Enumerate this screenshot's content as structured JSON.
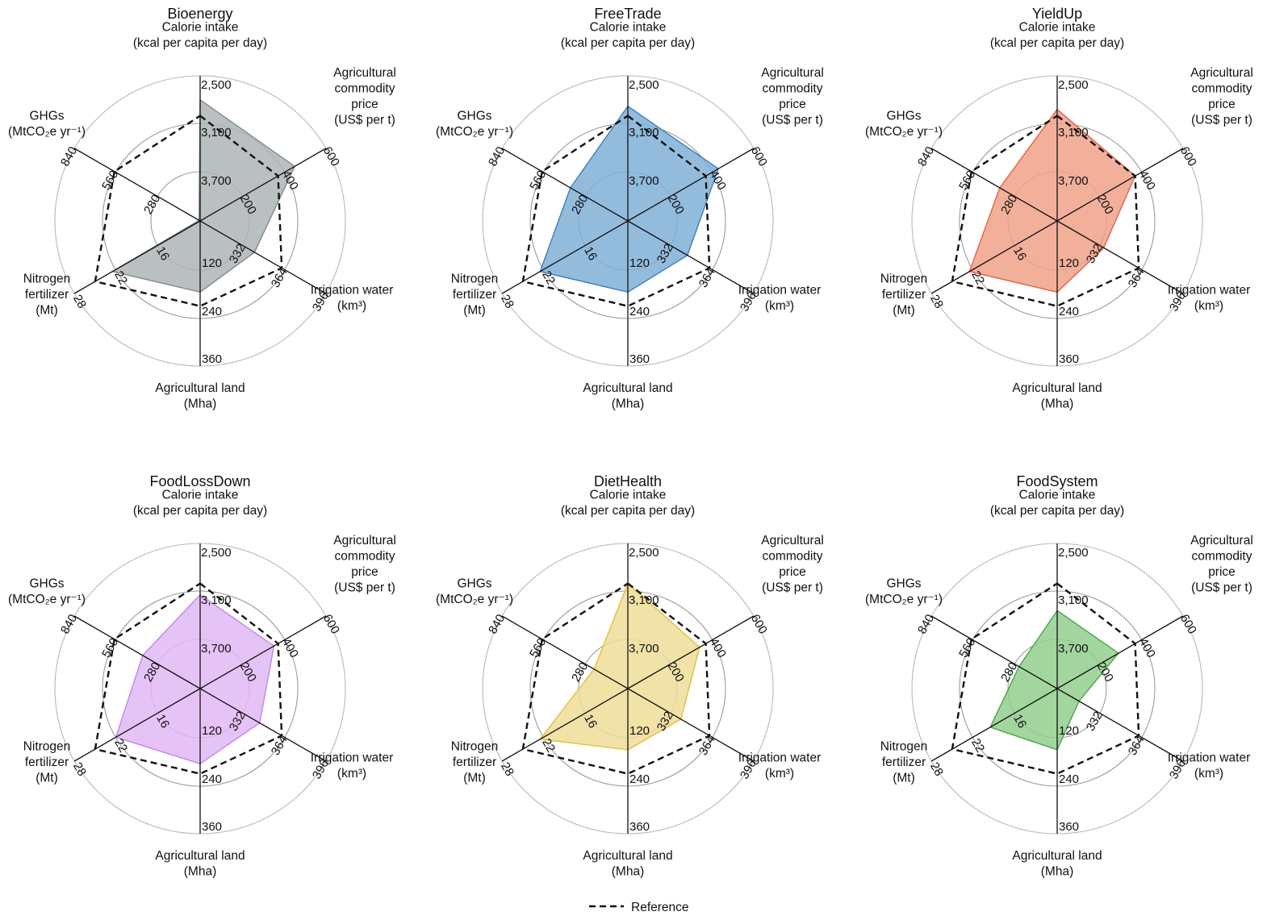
{
  "figure": {
    "legend": {
      "label": "Reference",
      "line_style": "dashed",
      "color": "#111111"
    }
  },
  "axes": [
    {
      "key": "calorie",
      "label_lines": [
        "Calorie intake",
        "(kcal per capita per day)"
      ],
      "ticks": [
        "2,500",
        "3,100",
        "3,700"
      ]
    },
    {
      "key": "price",
      "label_lines": [
        "Agricultural",
        "commodity",
        "price",
        "(US$ per t)"
      ],
      "ticks": [
        "600",
        "400",
        "200"
      ]
    },
    {
      "key": "water",
      "label_lines": [
        "Irrigation water",
        "(km³)"
      ],
      "ticks": [
        "396",
        "364",
        "332"
      ]
    },
    {
      "key": "land",
      "label_lines": [
        "Agricultural land",
        "(Mha)"
      ],
      "ticks": [
        "360",
        "240",
        "120"
      ]
    },
    {
      "key": "nitrogen",
      "label_lines": [
        "Nitrogen",
        "fertilizer",
        "(Mt)"
      ],
      "ticks": [
        "28",
        "22",
        "16"
      ]
    },
    {
      "key": "ghg",
      "label_lines": [
        "GHGs",
        "(MtCO₂e yr⁻¹)"
      ],
      "ticks": [
        "840",
        "560",
        "280"
      ]
    }
  ],
  "chart_data": [
    {
      "type": "radar",
      "title": "Bioenergy",
      "color": "#aeb4b6",
      "stroke": "#7f8a8e",
      "axes": [
        "Calorie intake",
        "Agricultural commodity price",
        "Irrigation water",
        "Agricultural land",
        "Nitrogen fertilizer",
        "GHGs"
      ],
      "scale_note": "outer ring = first tick, inner rings = next ticks (calorie axis reversed, water axis starts at 300)",
      "reference": [
        3000,
        370,
        362,
        210,
        25,
        570
      ],
      "values": [
        2800,
        450,
        341,
        175,
        22.5,
        0
      ]
    },
    {
      "type": "radar",
      "title": "FreeTrade",
      "color": "#80afd6",
      "stroke": "#3f7fb9",
      "axes": [
        "Calorie intake",
        "Agricultural commodity price",
        "Irrigation water",
        "Agricultural land",
        "Nitrogen fertilizer",
        "GHGs"
      ],
      "reference": [
        3000,
        370,
        362,
        210,
        25,
        570
      ],
      "values": [
        2880,
        430,
        345,
        175,
        22.5,
        380
      ]
    },
    {
      "type": "radar",
      "title": "YieldUp",
      "color": "#f0a289",
      "stroke": "#e0654a",
      "axes": [
        "Calorie intake",
        "Agricultural commodity price",
        "Irrigation water",
        "Agricultural land",
        "Nitrogen fertilizer",
        "GHGs"
      ],
      "reference": [
        3000,
        370,
        362,
        210,
        25,
        570
      ],
      "values": [
        2920,
        370,
        335,
        175,
        22.5,
        380
      ]
    },
    {
      "type": "radar",
      "title": "FoodLossDown",
      "color": "#e0b9f5",
      "stroke": "#c187e6",
      "axes": [
        "Calorie intake",
        "Agricultural commodity price",
        "Irrigation water",
        "Agricultural land",
        "Nitrogen fertilizer",
        "GHGs"
      ],
      "reference": [
        3000,
        370,
        362,
        210,
        25,
        570
      ],
      "values": [
        3140,
        350,
        345,
        185,
        22,
        380
      ]
    },
    {
      "type": "radar",
      "title": "DietHealth",
      "color": "#eedd98",
      "stroke": "#e3bf3a",
      "axes": [
        "Calorie intake",
        "Agricultural commodity price",
        "Irrigation water",
        "Agricultural land",
        "Nitrogen fertilizer",
        "GHGs"
      ],
      "reference": [
        3000,
        370,
        362,
        210,
        25,
        570
      ],
      "values": [
        3000,
        340,
        340,
        150,
        22.5,
        220
      ]
    },
    {
      "type": "radar",
      "title": "FoodSystem",
      "color": "#92cf8d",
      "stroke": "#4aa448",
      "axes": [
        "Calorie intake",
        "Agricultural commodity price",
        "Irrigation water",
        "Agricultural land",
        "Nitrogen fertilizer",
        "GHGs"
      ],
      "reference": [
        3000,
        370,
        362,
        210,
        25,
        570
      ],
      "values": [
        3340,
        290,
        316,
        150,
        19.5,
        250
      ]
    }
  ]
}
